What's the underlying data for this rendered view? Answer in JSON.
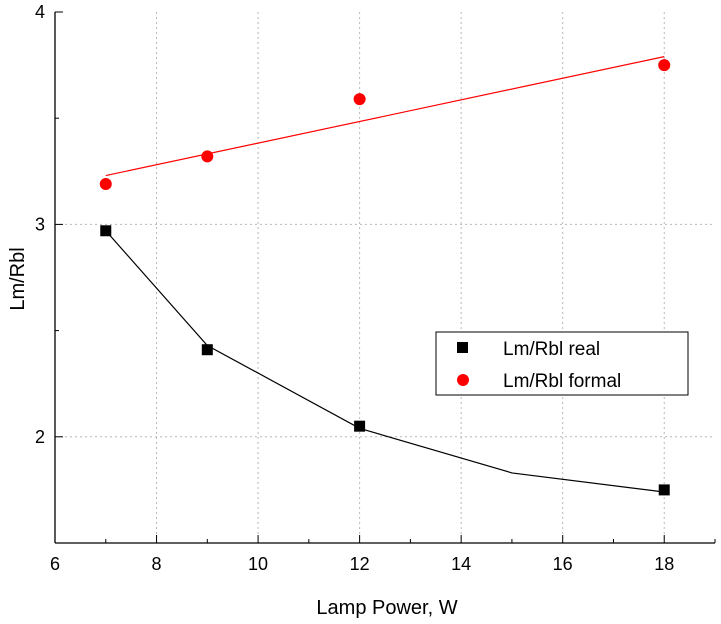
{
  "chart_data": {
    "type": "scatter",
    "title": "",
    "xlabel": "Lamp Power, W",
    "ylabel": "Lm/Rbl",
    "xlim": [
      6,
      19
    ],
    "ylim": [
      1.5,
      4
    ],
    "x_ticks": [
      6,
      8,
      10,
      12,
      14,
      16,
      18
    ],
    "y_ticks": [
      2,
      3,
      4
    ],
    "grid": true,
    "legend_position": "center-right",
    "series": [
      {
        "name": "Lm/Rbl real",
        "marker": "square",
        "color": "#000000",
        "x": [
          7,
          9,
          12,
          18
        ],
        "y": [
          2.97,
          2.41,
          2.05,
          1.75
        ],
        "fit": {
          "type": "exponential-decay",
          "x": [
            7,
            9,
            12,
            15,
            18
          ],
          "y": [
            2.97,
            2.43,
            2.04,
            1.83,
            1.74
          ]
        }
      },
      {
        "name": "Lm/Rbl formal",
        "marker": "circle",
        "color": "#ff0000",
        "x": [
          7,
          9,
          12,
          18
        ],
        "y": [
          3.19,
          3.32,
          3.59,
          3.75
        ],
        "fit": {
          "type": "linear",
          "x": [
            7,
            18
          ],
          "y": [
            3.23,
            3.79
          ]
        }
      }
    ]
  }
}
